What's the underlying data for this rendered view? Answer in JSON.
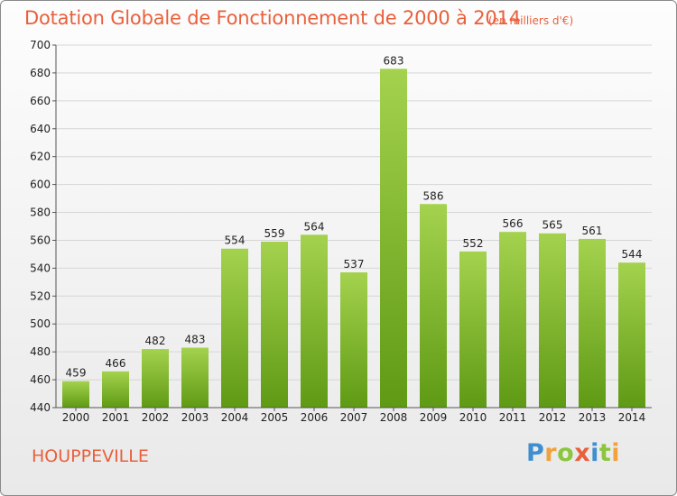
{
  "header": {
    "title": "Dotation Globale de Fonctionnement de 2000 à 2014",
    "subtitle": "(en milliers d'€)"
  },
  "footer": {
    "place": "HOUPPEVILLE",
    "brand": "Proxiti"
  },
  "colors": {
    "title": "#e8603c",
    "bar_top": "#a4d24e",
    "bar_bottom": "#5f9a14",
    "brand_letters": [
      "#3f8fd0",
      "#f0a23c",
      "#8cc63f",
      "#e8603c",
      "#3f8fd0",
      "#8cc63f",
      "#f0a23c"
    ]
  },
  "chart_data": {
    "type": "bar",
    "title": "Dotation Globale de Fonctionnement de 2000 à 2014",
    "subtitle": "(en milliers d'€)",
    "xlabel": "",
    "ylabel": "",
    "categories": [
      "2000",
      "2001",
      "2002",
      "2003",
      "2004",
      "2005",
      "2006",
      "2007",
      "2008",
      "2009",
      "2010",
      "2011",
      "2012",
      "2013",
      "2014"
    ],
    "values": [
      459,
      466,
      482,
      483,
      554,
      559,
      564,
      537,
      683,
      586,
      552,
      566,
      565,
      561,
      544
    ],
    "ylim": [
      440,
      700
    ],
    "yticks": [
      440,
      460,
      480,
      500,
      520,
      540,
      560,
      580,
      600,
      620,
      640,
      660,
      680,
      700
    ],
    "grid": true,
    "legend": "none"
  }
}
